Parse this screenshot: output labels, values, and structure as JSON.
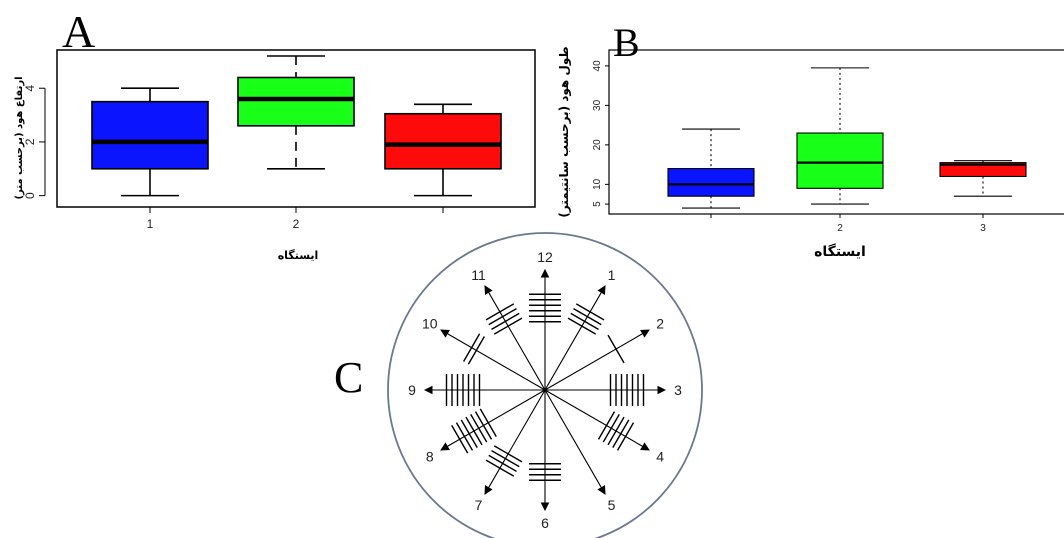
{
  "panels": {
    "a_letter": "A",
    "b_letter": "B",
    "c_letter": "C"
  },
  "chart_data": [
    {
      "panel": "A",
      "type": "box",
      "xlabel": "ایستگاه",
      "ylabel": "ارتفاع هود (برحسب متر)",
      "y_ticks": [
        "0",
        "2",
        "4"
      ],
      "ylim": [
        -0.2,
        5.2
      ],
      "categories": [
        "1",
        "2",
        ""
      ],
      "boxes": [
        {
          "category": "1",
          "color": "#0a14ff",
          "min": 0,
          "q1": 1,
          "median": 2,
          "q3": 3.5,
          "max": 4,
          "whisker": "solid"
        },
        {
          "category": "2",
          "color": "#18ff18",
          "min": 1,
          "q1": 2.6,
          "median": 3.6,
          "q3": 4.4,
          "max": 5.2,
          "whisker": "dashed"
        },
        {
          "category": "",
          "color": "#ff0a0a",
          "min": 0,
          "q1": 1,
          "median": 1.9,
          "q3": 3.05,
          "max": 3.4,
          "whisker": "solid"
        }
      ]
    },
    {
      "panel": "B",
      "type": "box",
      "xlabel": "ایستگاه",
      "ylabel": "طول هود (برحسب سانتیمتر)",
      "y_ticks": [
        "5",
        "10",
        "20",
        "30",
        "40"
      ],
      "ylim": [
        3,
        42
      ],
      "categories": [
        "",
        "2",
        "3"
      ],
      "boxes": [
        {
          "category": "",
          "color": "#0a14ff",
          "min": 4,
          "q1": 7,
          "median": 10,
          "q3": 14,
          "max": 24,
          "whisker": "dotted"
        },
        {
          "category": "2",
          "color": "#18ff18",
          "min": 5,
          "q1": 9,
          "median": 15.5,
          "q3": 23,
          "max": 39.5,
          "whisker": "dotted"
        },
        {
          "category": "3",
          "color": "#ff0a0a",
          "min": 7,
          "q1": 12,
          "median": 15,
          "q3": 15.5,
          "max": 16,
          "whisker": "dotted"
        }
      ]
    },
    {
      "panel": "C",
      "type": "rose",
      "directions": [
        {
          "label": "12",
          "count": 6
        },
        {
          "label": "1",
          "count": 4
        },
        {
          "label": "2",
          "count": 1
        },
        {
          "label": "3",
          "count": 7
        },
        {
          "label": "4",
          "count": 5
        },
        {
          "label": "5",
          "count": 0
        },
        {
          "label": "6",
          "count": 4
        },
        {
          "label": "7",
          "count": 4
        },
        {
          "label": "8",
          "count": 7
        },
        {
          "label": "9",
          "count": 7
        },
        {
          "label": "10",
          "count": 2
        },
        {
          "label": "11",
          "count": 4
        }
      ]
    }
  ]
}
